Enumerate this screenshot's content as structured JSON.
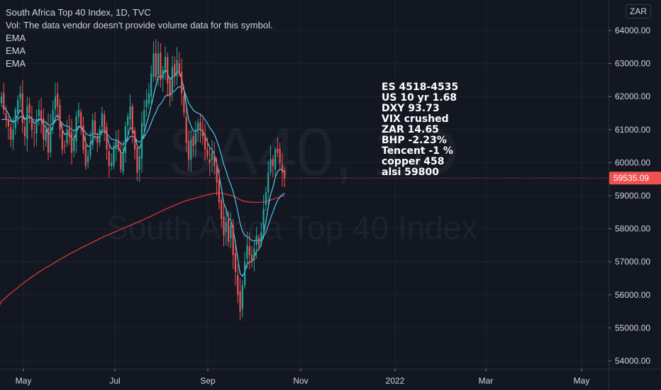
{
  "header": {
    "title": "South Africa Top 40 Index, 1D, TVC",
    "volume_note": "Vol: The data vendor doesn't provide volume data for this symbol.",
    "indicators": [
      "EMA",
      "EMA",
      "EMA"
    ],
    "currency": "ZAR"
  },
  "watermark": {
    "symbol": "SA40, 1D",
    "name": "South Africa Top 40 Index"
  },
  "annotation": [
    "ES 4518-4535",
    "US 10 yr 1.68",
    "DXY 93.73",
    "VIX crushed",
    "ZAR 14.65",
    "BHP -2.23%",
    "Tencent -1 %",
    "copper 458",
    "alsi 59800"
  ],
  "colors": {
    "background": "#131722",
    "up": "#26a69a",
    "down": "#ef5350",
    "ema_fast": "#5dd1f0",
    "ema_mid": "#4fc3f7",
    "ema_slow": "#e53935",
    "price_line": "#ef5350"
  },
  "chart_data": {
    "type": "candlestick",
    "title": "South Africa Top 40 Index, 1D, TVC",
    "y_ticks": [
      54000,
      55000,
      56000,
      57000,
      58000,
      59000,
      60000,
      61000,
      62000,
      63000,
      64000
    ],
    "y_tick_labels": [
      "54000.00",
      "55000.00",
      "56000.00",
      "57000.00",
      "58000.00",
      "59000.00",
      "60000.00",
      "61000.00",
      "62000.00",
      "63000.00",
      "64000.00"
    ],
    "ylim": [
      53750,
      65000
    ],
    "x_tick_labels": [
      "May",
      "Jul",
      "Sep",
      "Nov",
      "2022",
      "Mar",
      "May"
    ],
    "last_price": 59535.09,
    "last_price_label": "59535.09",
    "closes": [
      62000,
      61600,
      61300,
      61100,
      60700,
      61000,
      61600,
      61900,
      62100,
      61200,
      60800,
      61700,
      61500,
      61000,
      60900,
      61300,
      61600,
      61300,
      60700,
      61000,
      60300,
      61100,
      61600,
      62000,
      61700,
      61000,
      60400,
      60500,
      61000,
      60800,
      60300,
      60700,
      61400,
      61600,
      61100,
      60400,
      59900,
      60200,
      60600,
      61300,
      60900,
      60600,
      61000,
      61500,
      61000,
      60400,
      59900,
      60000,
      60500,
      60700,
      60400,
      59800,
      60300,
      61100,
      61400,
      61700,
      60900,
      60400,
      59700,
      60200,
      61200,
      61600,
      61900,
      62100,
      62700,
      63300,
      62600,
      63300,
      62500,
      62800,
      63200,
      62400,
      62000,
      62900,
      62600,
      63100,
      62700,
      62100,
      61500,
      60600,
      60100,
      60700,
      60500,
      60900,
      61200,
      61000,
      60800,
      60400,
      60200,
      60000,
      60300,
      59900,
      59400,
      58800,
      58300,
      57800,
      58200,
      57600,
      58100,
      57200,
      56700,
      56000,
      55500,
      56300,
      57000,
      57500,
      57200,
      57000,
      57400,
      57800,
      57500,
      57900,
      58600,
      59100,
      59700,
      60100,
      59900,
      60400,
      60300,
      60000,
      59700,
      59535
    ],
    "ema_fast": [
      61700,
      61680,
      61600,
      61480,
      61300,
      61220,
      61300,
      61450,
      61600,
      61500,
      61300,
      61400,
      61420,
      61300,
      61200,
      61220,
      61300,
      61300,
      61120,
      61080,
      60850,
      60920,
      61100,
      61350,
      61450,
      61300,
      61000,
      60850,
      60890,
      60870,
      60720,
      60710,
      60900,
      61100,
      61100,
      60900,
      60600,
      60480,
      60510,
      60750,
      60800,
      60740,
      60810,
      61000,
      61000,
      60840,
      60570,
      60420,
      60440,
      60520,
      60490,
      60300,
      60300,
      60540,
      60800,
      61060,
      61020,
      60830,
      60510,
      60420,
      60630,
      60890,
      61180,
      61430,
      61720,
      62030,
      62330,
      62630,
      62580,
      62650,
      62820,
      62710,
      62500,
      62620,
      62610,
      62750,
      62740,
      62540,
      62220,
      61740,
      61300,
      61120,
      60960,
      60940,
      61010,
      61010,
      60950,
      60790,
      60630,
      60450,
      60400,
      60250,
      59980,
      59620,
      59220,
      58770,
      58600,
      58320,
      58260,
      57970,
      57580,
      57100,
      56640,
      56560,
      56700,
      56930,
      57000,
      57000,
      57120,
      57320,
      57380,
      57540,
      57850,
      58200,
      58650,
      59030,
      59250,
      59550,
      59730,
      59810,
      59780,
      59720
    ],
    "ema_mid": [
      61300,
      61310,
      61310,
      61290,
      61250,
      61230,
      61260,
      61320,
      61390,
      61370,
      61310,
      61350,
      61370,
      61330,
      61290,
      61290,
      61320,
      61320,
      61260,
      61230,
      61140,
      61140,
      61190,
      61270,
      61310,
      61280,
      61190,
      61120,
      61110,
      61080,
      61000,
      60970,
      61020,
      61080,
      61080,
      61010,
      60900,
      60840,
      60820,
      60870,
      60880,
      60850,
      60870,
      60930,
      60940,
      60890,
      60790,
      60710,
      60690,
      60690,
      60660,
      60580,
      60550,
      60600,
      60680,
      60790,
      60800,
      60760,
      60660,
      60620,
      60680,
      60780,
      60900,
      61030,
      61200,
      61390,
      61520,
      61700,
      61780,
      61880,
      62010,
      62050,
      62040,
      62120,
      62170,
      62260,
      62300,
      62280,
      62200,
      62000,
      61800,
      61700,
      61590,
      61530,
      61500,
      61460,
      61400,
      61300,
      61190,
      61060,
      60970,
      60850,
      60680,
      60470,
      60230,
      59950,
      59750,
      59510,
      59340,
      59120,
      58850,
      58520,
      58160,
      57920,
      57800,
      57760,
      57710,
      57650,
      57630,
      57650,
      57640,
      57670,
      57760,
      57910,
      58100,
      58320,
      58500,
      58700,
      58860,
      58970,
      59030,
      59070
    ],
    "ema_slow": [
      55800,
      55860,
      55920,
      55990,
      56050,
      56110,
      56160,
      56220,
      56280,
      56330,
      56390,
      56440,
      56490,
      56540,
      56590,
      56640,
      56690,
      56730,
      56780,
      56820,
      56860,
      56900,
      56940,
      56990,
      57030,
      57070,
      57110,
      57150,
      57190,
      57230,
      57270,
      57300,
      57340,
      57380,
      57420,
      57450,
      57490,
      57520,
      57560,
      57590,
      57630,
      57660,
      57700,
      57730,
      57770,
      57800,
      57830,
      57860,
      57890,
      57920,
      57950,
      57980,
      58010,
      58040,
      58070,
      58100,
      58130,
      58160,
      58190,
      58220,
      58250,
      58280,
      58320,
      58350,
      58380,
      58420,
      58450,
      58490,
      58520,
      58550,
      58590,
      58620,
      58650,
      58680,
      58710,
      58740,
      58770,
      58800,
      58830,
      58850,
      58870,
      58890,
      58910,
      58930,
      58950,
      58970,
      58990,
      59010,
      59030,
      59040,
      59060,
      59070,
      59080,
      59080,
      59080,
      59060,
      59050,
      59030,
      59010,
      58990,
      58960,
      58920,
      58880,
      58850,
      58830,
      58820,
      58810,
      58800,
      58800,
      58800,
      58800,
      58800,
      58810,
      58830,
      58850,
      58870,
      58890,
      58920,
      58940,
      58960,
      58980,
      59000
    ],
    "series": [
      {
        "name": "EMA"
      },
      {
        "name": "EMA"
      },
      {
        "name": "EMA"
      }
    ]
  }
}
